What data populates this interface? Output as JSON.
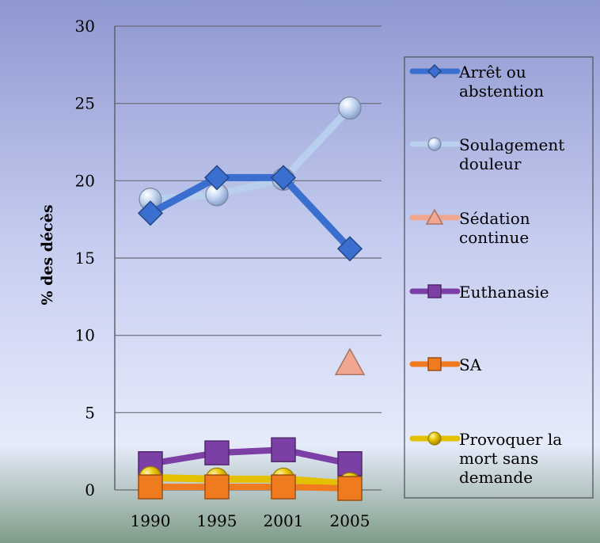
{
  "chart_data": {
    "type": "line",
    "x": [
      "1990",
      "1995",
      "2001",
      "2005"
    ],
    "ylabel": "% des décès",
    "ylim": [
      0,
      30
    ],
    "yticks": [
      0,
      5,
      10,
      15,
      20,
      25,
      30
    ],
    "grid": true,
    "legend_position": "right",
    "series": [
      {
        "name_lines": [
          "Arrêt ou",
          "abstention"
        ],
        "marker": "diamond",
        "color": "#3a6fd0",
        "values": [
          17.9,
          20.2,
          20.2,
          15.6
        ]
      },
      {
        "name_lines": [
          "Soulagement",
          "douleur"
        ],
        "marker": "circle",
        "color": "#b8cfee",
        "values": [
          18.8,
          19.1,
          20.1,
          24.7
        ]
      },
      {
        "name_lines": [
          "Sédation",
          "continue"
        ],
        "marker": "triangle",
        "color": "#f1a78f",
        "values": [
          null,
          null,
          null,
          8.2
        ]
      },
      {
        "name_lines": [
          "Euthanasie"
        ],
        "marker": "square",
        "color": "#7b3fa6",
        "values": [
          1.7,
          2.4,
          2.6,
          1.7
        ]
      },
      {
        "name_lines": [
          "SA"
        ],
        "marker": "square",
        "color": "#f07a1e",
        "values": [
          0.2,
          0.2,
          0.2,
          0.1
        ]
      },
      {
        "name_lines": [
          "Provoquer la",
          "mort sans",
          "demande"
        ],
        "marker": "circle",
        "color": "#e3c000",
        "values": [
          0.8,
          0.7,
          0.7,
          0.4
        ]
      }
    ]
  }
}
